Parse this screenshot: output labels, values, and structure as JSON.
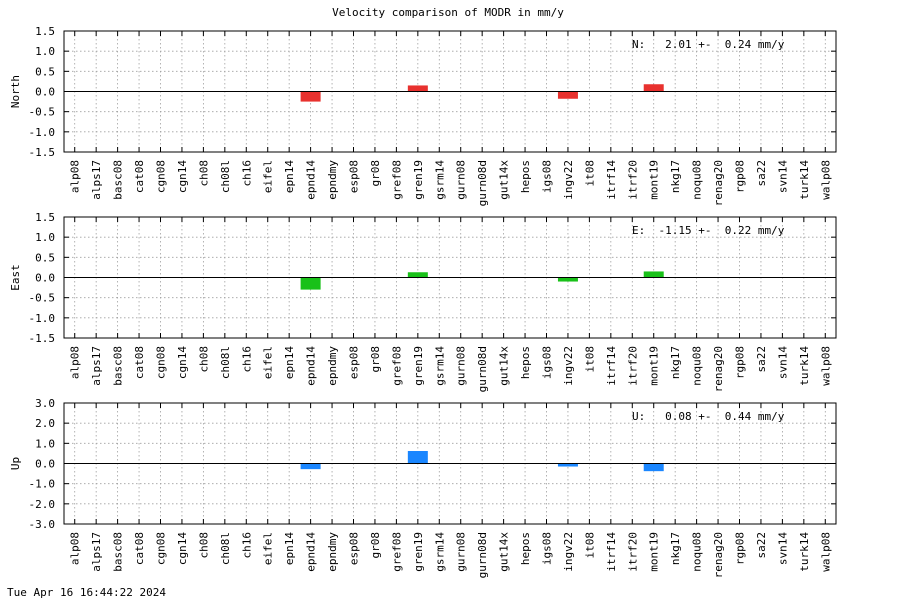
{
  "title": "Velocity comparison of MODR in mm/y",
  "footer": "Tue Apr 16 16:44:22 2024",
  "chart_data": [
    {
      "type": "bar",
      "ylabel": "North",
      "ylim": [
        -1.5,
        1.5
      ],
      "ytick_labels": [
        "1.5",
        "1.0",
        "0.5",
        "0.0",
        "-0.5",
        "-1.0",
        "-1.5"
      ],
      "annotation": "N:   2.01 +-  0.24 mm/y",
      "color": "#e8312e",
      "grid": true,
      "categories": [
        "alp08",
        "alps17",
        "basc08",
        "cat08",
        "cgn08",
        "cgn14",
        "ch08",
        "ch08l",
        "ch16",
        "eifel",
        "epn14",
        "epnd14",
        "epndmy",
        "esp08",
        "gr08",
        "gref08",
        "gren19",
        "gsrm14",
        "gurn08",
        "gurn08d",
        "gut14x",
        "hepos",
        "igs08",
        "ingv22",
        "it08",
        "itrf14",
        "itrf20",
        "mont19",
        "nkg17",
        "noqu08",
        "renag20",
        "rgp08",
        "sa22",
        "svn14",
        "turk14",
        "walp08"
      ],
      "values": [
        null,
        null,
        null,
        null,
        null,
        null,
        null,
        null,
        null,
        null,
        null,
        -0.25,
        null,
        null,
        null,
        null,
        0.15,
        null,
        null,
        null,
        null,
        null,
        null,
        -0.18,
        null,
        null,
        null,
        0.18,
        null,
        null,
        null,
        null,
        null,
        null,
        null,
        null
      ]
    },
    {
      "type": "bar",
      "ylabel": "East",
      "ylim": [
        -1.5,
        1.5
      ],
      "ytick_labels": [
        "1.5",
        "1.0",
        "0.5",
        "0.0",
        "-0.5",
        "-1.0",
        "-1.5"
      ],
      "annotation": "E:  -1.15 +-  0.22 mm/y",
      "color": "#19c119",
      "grid": true,
      "categories": [
        "alp08",
        "alps17",
        "basc08",
        "cat08",
        "cgn08",
        "cgn14",
        "ch08",
        "ch08l",
        "ch16",
        "eifel",
        "epn14",
        "epnd14",
        "epndmy",
        "esp08",
        "gr08",
        "gref08",
        "gren19",
        "gsrm14",
        "gurn08",
        "gurn08d",
        "gut14x",
        "hepos",
        "igs08",
        "ingv22",
        "it08",
        "itrf14",
        "itrf20",
        "mont19",
        "nkg17",
        "noqu08",
        "renag20",
        "rgp08",
        "sa22",
        "svn14",
        "turk14",
        "walp08"
      ],
      "values": [
        null,
        null,
        null,
        null,
        null,
        null,
        null,
        null,
        null,
        null,
        null,
        -0.3,
        null,
        null,
        null,
        null,
        0.13,
        null,
        null,
        null,
        null,
        null,
        null,
        -0.1,
        null,
        null,
        null,
        0.15,
        null,
        null,
        null,
        null,
        null,
        null,
        null,
        null
      ]
    },
    {
      "type": "bar",
      "ylabel": "Up",
      "ylim": [
        -3.0,
        3.0
      ],
      "ytick_labels": [
        "3.0",
        "2.0",
        "1.0",
        "0.0",
        "-1.0",
        "-2.0",
        "-3.0"
      ],
      "annotation": "U:   0.08 +-  0.44 mm/y",
      "color": "#1a86ff",
      "grid": true,
      "categories": [
        "alp08",
        "alps17",
        "basc08",
        "cat08",
        "cgn08",
        "cgn14",
        "ch08",
        "ch08l",
        "ch16",
        "eifel",
        "epn14",
        "epnd14",
        "epndmy",
        "esp08",
        "gr08",
        "gref08",
        "gren19",
        "gsrm14",
        "gurn08",
        "gurn08d",
        "gut14x",
        "hepos",
        "igs08",
        "ingv22",
        "it08",
        "itrf14",
        "itrf20",
        "mont19",
        "nkg17",
        "noqu08",
        "renag20",
        "rgp08",
        "sa22",
        "svn14",
        "turk14",
        "walp08"
      ],
      "values": [
        null,
        null,
        null,
        null,
        null,
        null,
        null,
        null,
        null,
        null,
        null,
        -0.28,
        null,
        null,
        null,
        null,
        0.62,
        null,
        null,
        null,
        null,
        null,
        null,
        -0.15,
        null,
        null,
        null,
        -0.38,
        null,
        null,
        null,
        null,
        null,
        null,
        null,
        null
      ]
    }
  ]
}
